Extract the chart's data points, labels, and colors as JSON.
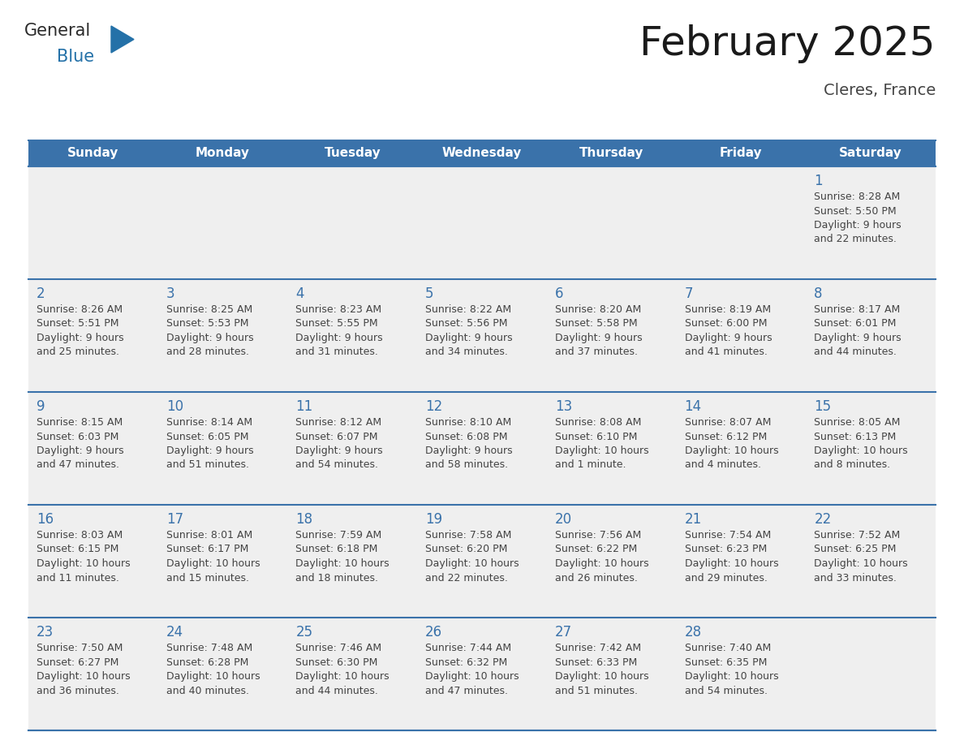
{
  "title": "February 2025",
  "subtitle": "Cleres, France",
  "days_of_week": [
    "Sunday",
    "Monday",
    "Tuesday",
    "Wednesday",
    "Thursday",
    "Friday",
    "Saturday"
  ],
  "header_bg": "#3A72AA",
  "header_fg": "#FFFFFF",
  "row_bg": "#EFEFEF",
  "border_color": "#3A72AA",
  "day_number_color": "#3A72AA",
  "text_color": "#444444",
  "calendar_data": [
    [
      {
        "day": null,
        "sunrise": null,
        "sunset": null,
        "daylight": null
      },
      {
        "day": null,
        "sunrise": null,
        "sunset": null,
        "daylight": null
      },
      {
        "day": null,
        "sunrise": null,
        "sunset": null,
        "daylight": null
      },
      {
        "day": null,
        "sunrise": null,
        "sunset": null,
        "daylight": null
      },
      {
        "day": null,
        "sunrise": null,
        "sunset": null,
        "daylight": null
      },
      {
        "day": null,
        "sunrise": null,
        "sunset": null,
        "daylight": null
      },
      {
        "day": 1,
        "sunrise": "8:28 AM",
        "sunset": "5:50 PM",
        "daylight": "9 hours\nand 22 minutes."
      }
    ],
    [
      {
        "day": 2,
        "sunrise": "8:26 AM",
        "sunset": "5:51 PM",
        "daylight": "9 hours\nand 25 minutes."
      },
      {
        "day": 3,
        "sunrise": "8:25 AM",
        "sunset": "5:53 PM",
        "daylight": "9 hours\nand 28 minutes."
      },
      {
        "day": 4,
        "sunrise": "8:23 AM",
        "sunset": "5:55 PM",
        "daylight": "9 hours\nand 31 minutes."
      },
      {
        "day": 5,
        "sunrise": "8:22 AM",
        "sunset": "5:56 PM",
        "daylight": "9 hours\nand 34 minutes."
      },
      {
        "day": 6,
        "sunrise": "8:20 AM",
        "sunset": "5:58 PM",
        "daylight": "9 hours\nand 37 minutes."
      },
      {
        "day": 7,
        "sunrise": "8:19 AM",
        "sunset": "6:00 PM",
        "daylight": "9 hours\nand 41 minutes."
      },
      {
        "day": 8,
        "sunrise": "8:17 AM",
        "sunset": "6:01 PM",
        "daylight": "9 hours\nand 44 minutes."
      }
    ],
    [
      {
        "day": 9,
        "sunrise": "8:15 AM",
        "sunset": "6:03 PM",
        "daylight": "9 hours\nand 47 minutes."
      },
      {
        "day": 10,
        "sunrise": "8:14 AM",
        "sunset": "6:05 PM",
        "daylight": "9 hours\nand 51 minutes."
      },
      {
        "day": 11,
        "sunrise": "8:12 AM",
        "sunset": "6:07 PM",
        "daylight": "9 hours\nand 54 minutes."
      },
      {
        "day": 12,
        "sunrise": "8:10 AM",
        "sunset": "6:08 PM",
        "daylight": "9 hours\nand 58 minutes."
      },
      {
        "day": 13,
        "sunrise": "8:08 AM",
        "sunset": "6:10 PM",
        "daylight": "10 hours\nand 1 minute."
      },
      {
        "day": 14,
        "sunrise": "8:07 AM",
        "sunset": "6:12 PM",
        "daylight": "10 hours\nand 4 minutes."
      },
      {
        "day": 15,
        "sunrise": "8:05 AM",
        "sunset": "6:13 PM",
        "daylight": "10 hours\nand 8 minutes."
      }
    ],
    [
      {
        "day": 16,
        "sunrise": "8:03 AM",
        "sunset": "6:15 PM",
        "daylight": "10 hours\nand 11 minutes."
      },
      {
        "day": 17,
        "sunrise": "8:01 AM",
        "sunset": "6:17 PM",
        "daylight": "10 hours\nand 15 minutes."
      },
      {
        "day": 18,
        "sunrise": "7:59 AM",
        "sunset": "6:18 PM",
        "daylight": "10 hours\nand 18 minutes."
      },
      {
        "day": 19,
        "sunrise": "7:58 AM",
        "sunset": "6:20 PM",
        "daylight": "10 hours\nand 22 minutes."
      },
      {
        "day": 20,
        "sunrise": "7:56 AM",
        "sunset": "6:22 PM",
        "daylight": "10 hours\nand 26 minutes."
      },
      {
        "day": 21,
        "sunrise": "7:54 AM",
        "sunset": "6:23 PM",
        "daylight": "10 hours\nand 29 minutes."
      },
      {
        "day": 22,
        "sunrise": "7:52 AM",
        "sunset": "6:25 PM",
        "daylight": "10 hours\nand 33 minutes."
      }
    ],
    [
      {
        "day": 23,
        "sunrise": "7:50 AM",
        "sunset": "6:27 PM",
        "daylight": "10 hours\nand 36 minutes."
      },
      {
        "day": 24,
        "sunrise": "7:48 AM",
        "sunset": "6:28 PM",
        "daylight": "10 hours\nand 40 minutes."
      },
      {
        "day": 25,
        "sunrise": "7:46 AM",
        "sunset": "6:30 PM",
        "daylight": "10 hours\nand 44 minutes."
      },
      {
        "day": 26,
        "sunrise": "7:44 AM",
        "sunset": "6:32 PM",
        "daylight": "10 hours\nand 47 minutes."
      },
      {
        "day": 27,
        "sunrise": "7:42 AM",
        "sunset": "6:33 PM",
        "daylight": "10 hours\nand 51 minutes."
      },
      {
        "day": 28,
        "sunrise": "7:40 AM",
        "sunset": "6:35 PM",
        "daylight": "10 hours\nand 54 minutes."
      },
      {
        "day": null,
        "sunrise": null,
        "sunset": null,
        "daylight": null
      }
    ]
  ],
  "logo_color_general": "#2a2a2a",
  "logo_color_blue": "#2471A8",
  "logo_triangle_color": "#2471A8",
  "title_fontsize": 36,
  "subtitle_fontsize": 14,
  "header_fontsize": 11,
  "day_num_fontsize": 12,
  "cell_text_fontsize": 9
}
